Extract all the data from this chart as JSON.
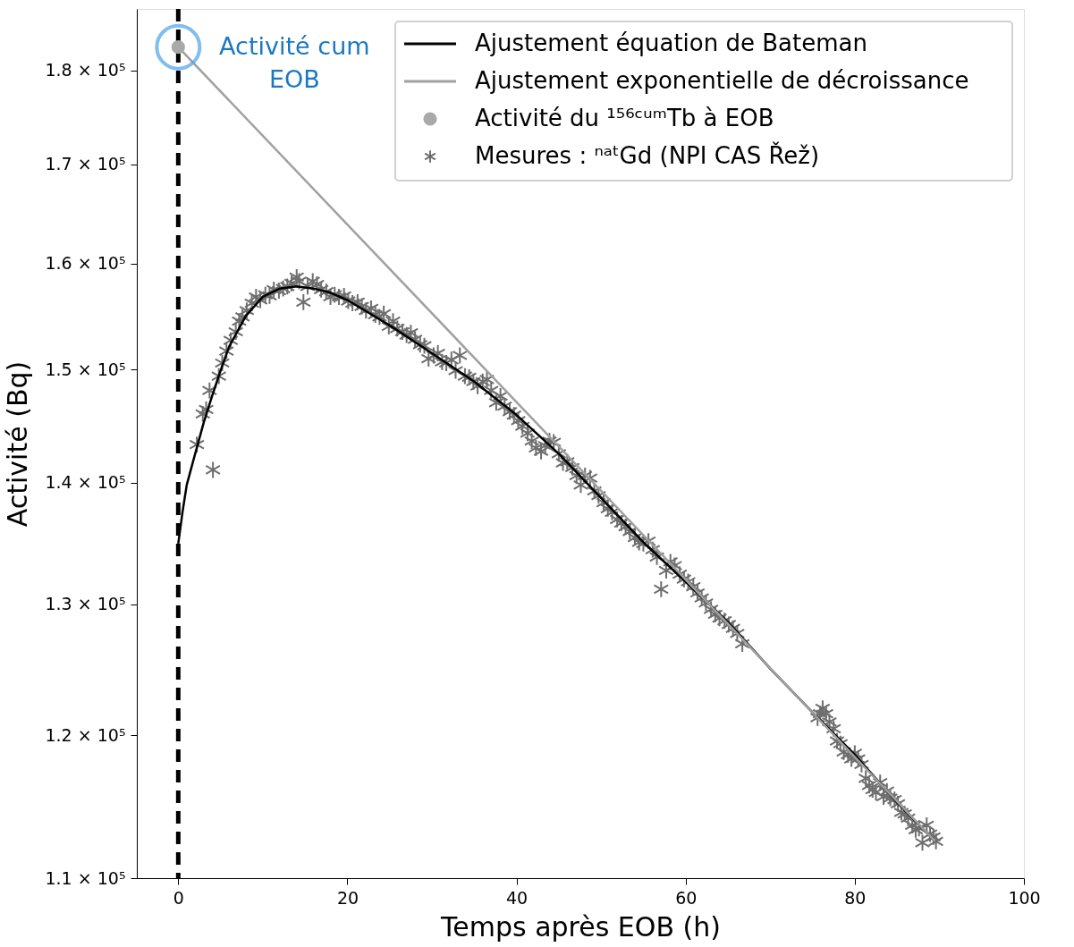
{
  "chart_data": {
    "type": "scatter",
    "xlabel": "Temps après EOB (h)",
    "ylabel": "Activité (Bq)",
    "xlim": [
      -4.9,
      100
    ],
    "xticks": [
      0,
      20,
      40,
      60,
      80,
      100
    ],
    "ylim": [
      110000,
      186900
    ],
    "log": "y",
    "yticks": [
      {
        "value": 110000,
        "label": "1.1 × 10⁵"
      },
      {
        "value": 120000,
        "label": "1.2 × 10⁵"
      },
      {
        "value": 130000,
        "label": "1.3 × 10⁵"
      },
      {
        "value": 140000,
        "label": "1.4 × 10⁵"
      },
      {
        "value": 150000,
        "label": "1.5 × 10⁵"
      },
      {
        "value": 160000,
        "label": "1.6 × 10⁵"
      },
      {
        "value": 170000,
        "label": "1.7 × 10⁵"
      },
      {
        "value": 180000,
        "label": "1.8 × 10⁵"
      }
    ],
    "grid": false,
    "legend": "top right",
    "ref_lines": [
      {
        "axis": "x",
        "value": 0,
        "color": "#000000",
        "line_style": "dashed"
      }
    ],
    "annotations": [
      {
        "text": "Activité cum\nEOB",
        "x": 0,
        "y": 182600
      }
    ],
    "series": [
      {
        "name": "Ajustement équation de Bateman",
        "type": "line",
        "color": "#000000",
        "x": [
          0,
          0.5,
          1,
          2,
          3,
          4,
          5,
          6,
          8,
          10,
          12,
          14,
          16,
          18,
          20,
          25,
          30,
          35,
          40,
          45,
          50,
          55,
          60,
          65,
          70,
          75,
          80,
          85,
          89.5
        ],
        "values": [
          134900,
          137500,
          139800,
          142500,
          145200,
          147600,
          149900,
          152100,
          155000,
          156800,
          157600,
          157800,
          157600,
          157200,
          156500,
          154100,
          151500,
          148900,
          145900,
          142500,
          138700,
          135000,
          131800,
          128600,
          125000,
          121700,
          118600,
          115200,
          112500
        ]
      },
      {
        "name": "Ajustement exponentielle de décroissance",
        "type": "line",
        "color": "#a0a0a0",
        "x": [
          0,
          89.5
        ],
        "values": [
          182600,
          112500
        ]
      },
      {
        "name": "Activité du ¹⁵⁶ᶜᵘᵐTb à EOB",
        "marker": "circle",
        "color": "#a9a9a9",
        "x": [
          0
        ],
        "values": [
          182600
        ]
      },
      {
        "name": "Mesures : ⁿᵃᵗGd (NPI CAS Řež)",
        "marker": "cross",
        "color": "#6e6e6e",
        "x": [
          2.2,
          2.9,
          3.3,
          3.7,
          4.1,
          4.8,
          5.2,
          5.7,
          6.2,
          6.8,
          7.2,
          7.6,
          8.1,
          8.7,
          9.2,
          9.7,
          10.3,
          10.8,
          11.3,
          11.9,
          12.4,
          12.9,
          13.4,
          14.0,
          14.3,
          14.8,
          15.3,
          15.9,
          16.4,
          16.9,
          17.5,
          18.0,
          18.5,
          19.0,
          19.6,
          20.1,
          20.6,
          21.2,
          21.7,
          22.2,
          22.8,
          23.3,
          23.8,
          24.3,
          24.9,
          25.4,
          25.9,
          26.5,
          27.0,
          27.5,
          28.0,
          28.6,
          29.1,
          29.6,
          30.2,
          30.7,
          31.2,
          31.7,
          32.3,
          32.8,
          33.3,
          33.9,
          34.4,
          34.9,
          35.4,
          36.0,
          36.5,
          37.0,
          37.6,
          38.1,
          38.6,
          39.2,
          39.7,
          40.2,
          40.7,
          41.3,
          41.8,
          42.3,
          42.9,
          43.4,
          43.9,
          44.4,
          45.0,
          45.5,
          46.0,
          46.6,
          47.1,
          47.6,
          48.1,
          48.7,
          49.2,
          49.7,
          50.3,
          50.8,
          51.3,
          51.9,
          52.4,
          52.9,
          53.4,
          54.0,
          54.5,
          55.0,
          55.6,
          56.1,
          56.6,
          57.1,
          57.7,
          58.2,
          58.7,
          59.3,
          59.8,
          60.3,
          60.9,
          61.4,
          61.9,
          62.4,
          63.0,
          63.5,
          64.0,
          64.6,
          65.1,
          65.6,
          66.1,
          66.7,
          75.6,
          75.9,
          76.2,
          76.6,
          77.0,
          77.5,
          77.9,
          78.3,
          78.7,
          79.2,
          79.6,
          80.0,
          80.4,
          80.8,
          81.3,
          81.7,
          82.1,
          82.5,
          83.0,
          83.4,
          83.8,
          84.2,
          84.7,
          85.1,
          85.5,
          85.9,
          86.3,
          86.8,
          87.2,
          87.6,
          88.0,
          88.5,
          88.9,
          89.3,
          89.6
        ],
        "values": [
          143300,
          146000,
          146400,
          148100,
          141100,
          149400,
          150600,
          151700,
          152700,
          153500,
          154500,
          154900,
          155500,
          156200,
          156800,
          156500,
          157000,
          156900,
          157500,
          157400,
          157600,
          157800,
          158100,
          158700,
          158300,
          156300,
          157800,
          158300,
          158000,
          157500,
          157300,
          156800,
          157000,
          156800,
          156900,
          156400,
          156200,
          156300,
          155900,
          155500,
          155700,
          155100,
          154900,
          155200,
          154000,
          154500,
          153800,
          153500,
          153200,
          153400,
          152800,
          152300,
          152200,
          151000,
          151300,
          151500,
          150700,
          150600,
          150900,
          149900,
          151300,
          149400,
          149300,
          148900,
          148500,
          148900,
          149100,
          148100,
          147000,
          147600,
          146700,
          146200,
          145900,
          145400,
          144900,
          144300,
          143600,
          143000,
          142700,
          143200,
          143600,
          143500,
          142500,
          141700,
          141800,
          141300,
          140600,
          139800,
          140600,
          140400,
          139300,
          138900,
          138300,
          137800,
          137500,
          136900,
          136600,
          136300,
          135900,
          135400,
          135000,
          134900,
          135100,
          134400,
          133800,
          131200,
          132700,
          133400,
          133100,
          132400,
          132000,
          131800,
          131400,
          130900,
          130500,
          130100,
          129600,
          129200,
          128900,
          128700,
          128400,
          128100,
          127700,
          126900,
          121300,
          121600,
          122000,
          121600,
          121000,
          120500,
          119600,
          119400,
          118800,
          118600,
          118300,
          118700,
          118300,
          117900,
          116900,
          116400,
          116100,
          115900,
          116600,
          115600,
          116000,
          115500,
          115400,
          115100,
          114500,
          114400,
          114100,
          113600,
          113300,
          113400,
          112400,
          113600,
          113000,
          112800,
          112500
        ]
      }
    ]
  }
}
